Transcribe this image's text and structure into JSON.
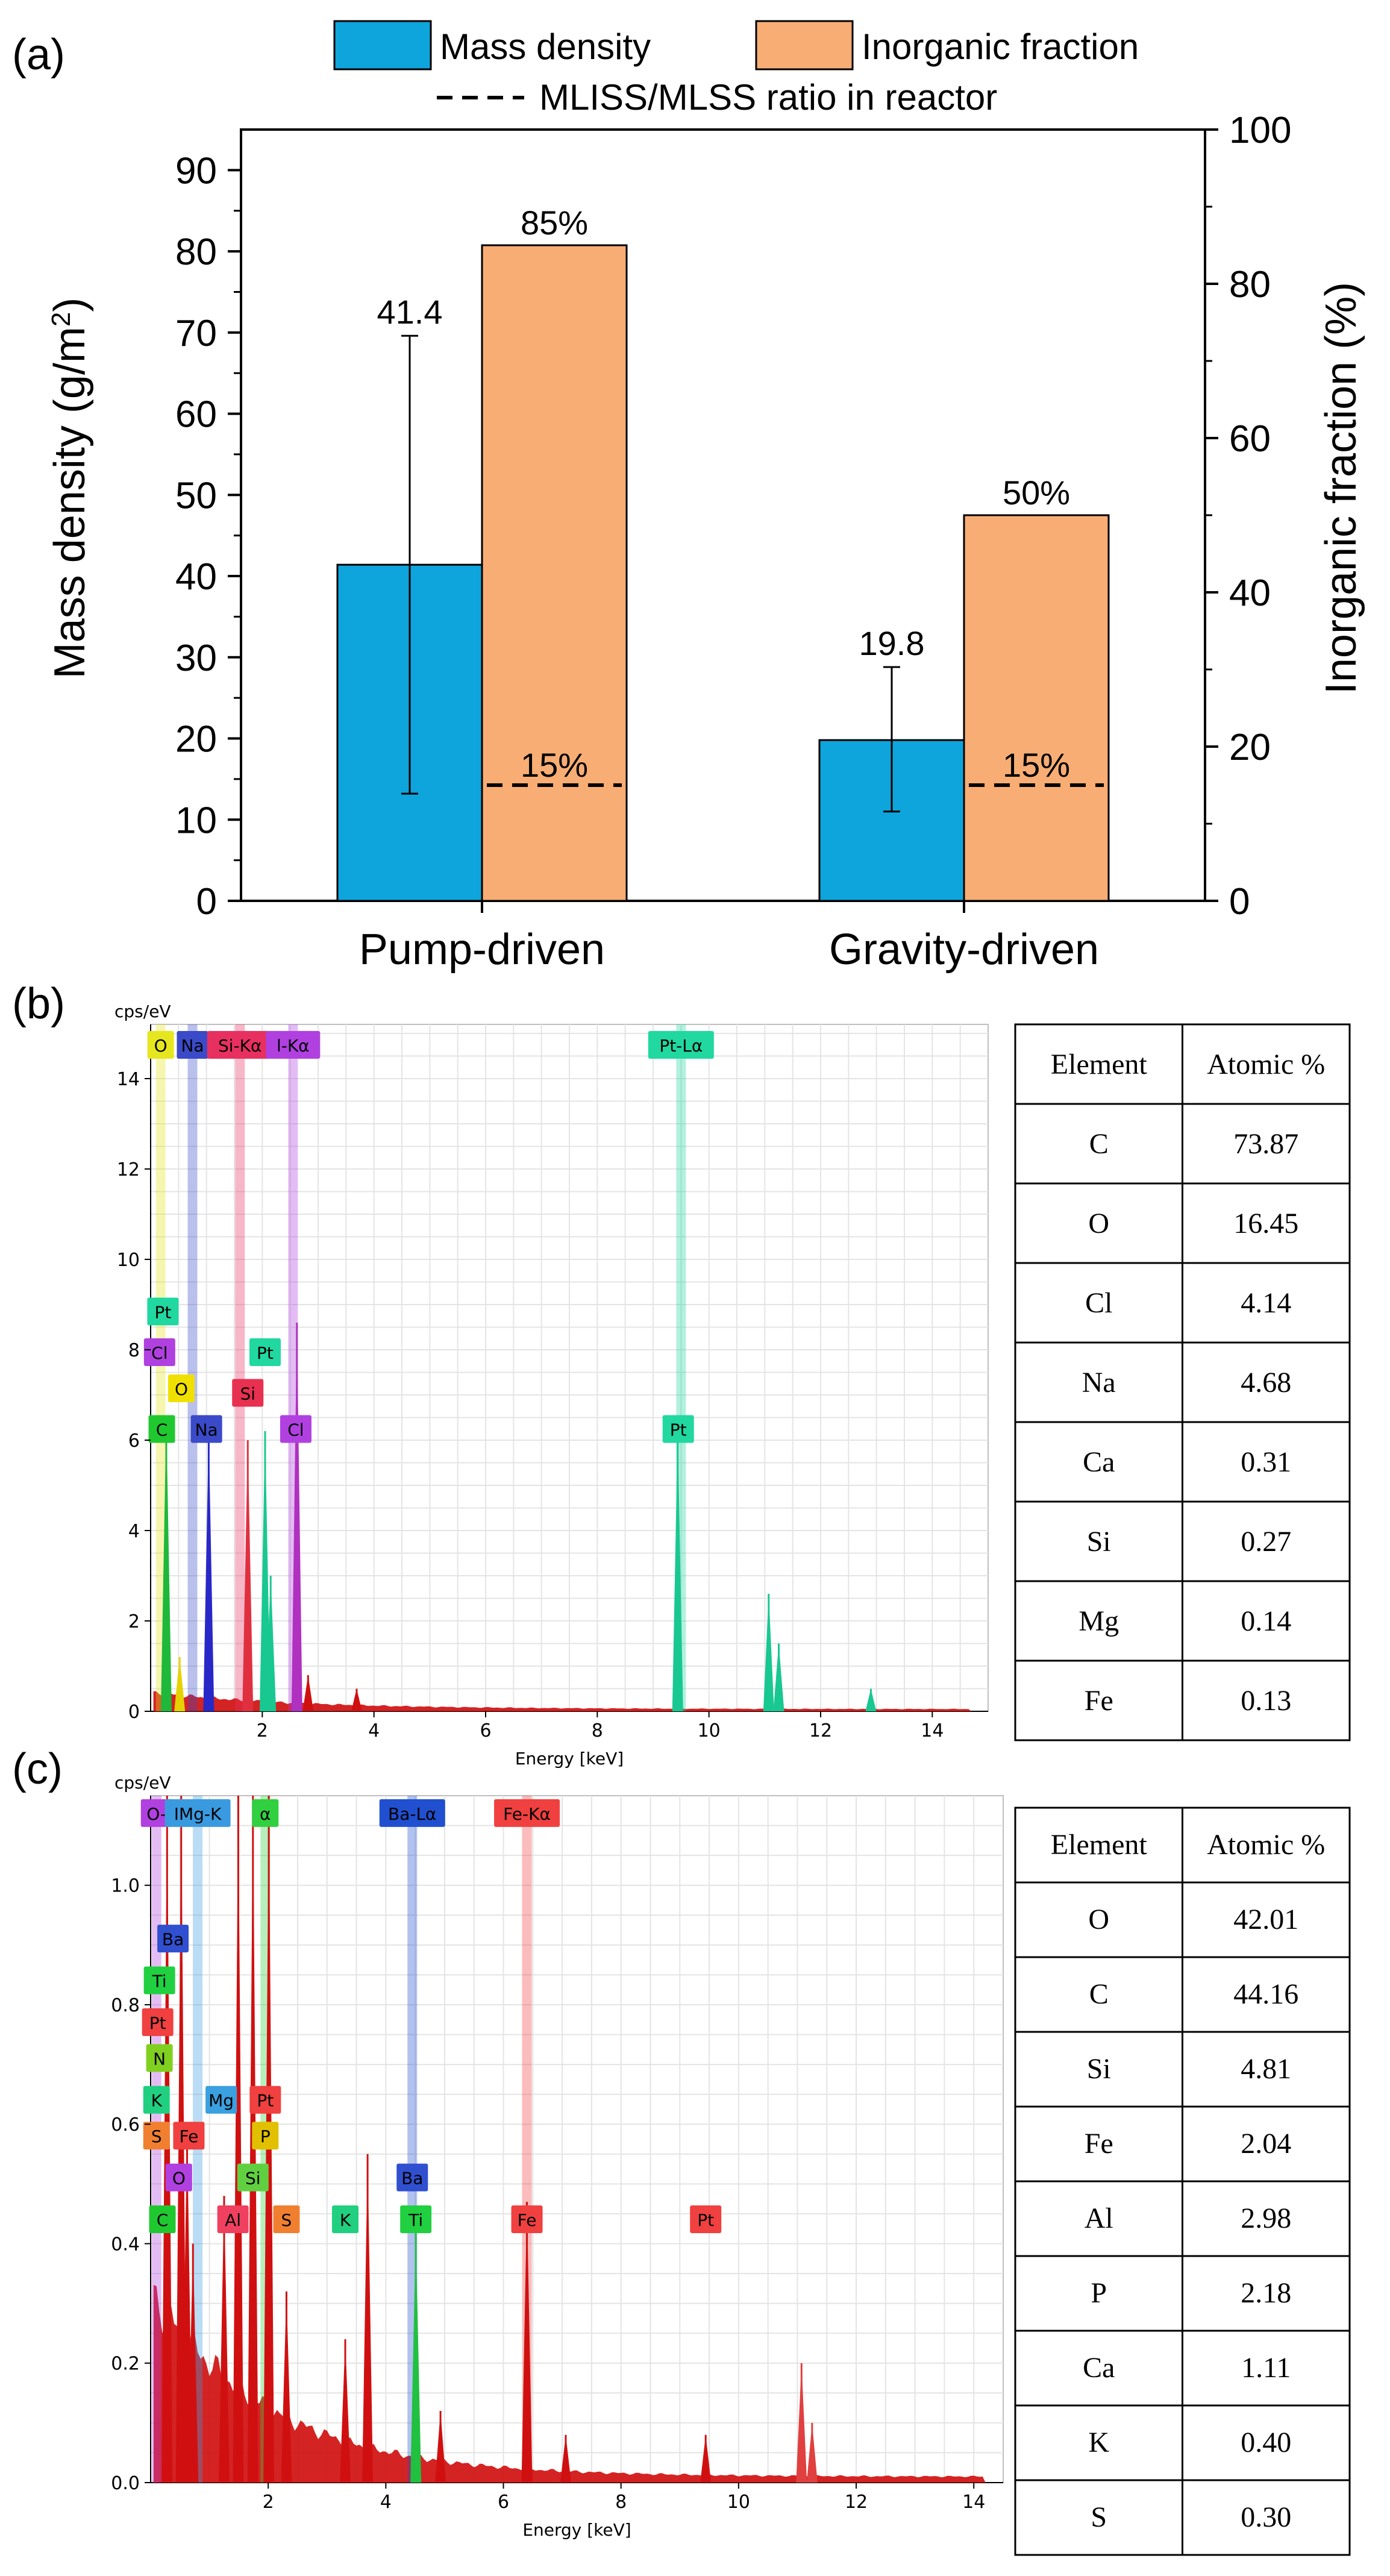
{
  "chart_data": [
    {
      "type": "bar",
      "panel": "(a)",
      "categories": [
        "Pump-driven",
        "Gravity-driven"
      ],
      "series": [
        {
          "name": "Mass density",
          "axis": "left",
          "color": "#0ea5dc",
          "values": [
            41.4,
            19.8
          ],
          "error_low": [
            13.2,
            11.0
          ],
          "error_high": [
            69.6,
            28.8
          ],
          "labels": [
            "41.4",
            "19.8"
          ]
        },
        {
          "name": "Inorganic fraction",
          "axis": "right",
          "color": "#f7ad73",
          "values": [
            85,
            50
          ],
          "labels": [
            "85%",
            "50%"
          ]
        }
      ],
      "reference_line": {
        "name": "MLISS/MLSS ratio in reactor",
        "axis": "right",
        "values": [
          15,
          15
        ],
        "labels": [
          "15%",
          "15%"
        ]
      },
      "ylabel": "Mass density (g/m",
      "ylabel_sup": "2",
      "ylabel_close": ")",
      "ylabel_right": "Inorganic fraction  (%)",
      "ylim": [
        0,
        95
      ],
      "ylim_right": [
        0,
        100
      ],
      "yticks": [
        "0",
        "10",
        "20",
        "30",
        "40",
        "50",
        "60",
        "70",
        "80",
        "90"
      ],
      "yticks_right": [
        "0",
        "20",
        "40",
        "60",
        "80",
        "100"
      ],
      "legend": [
        "Mass density",
        "Inorganic fraction",
        "MLISS/MLSS ratio in reactor"
      ],
      "legend_position": "top"
    },
    {
      "type": "line",
      "panel": "(b)",
      "ylabel": "cps/eV",
      "xlabel": "Energy [keV]",
      "xlim": [
        0,
        15
      ],
      "ylim": [
        0,
        15.2
      ],
      "xticks": [
        "2",
        "4",
        "6",
        "8",
        "10",
        "12",
        "14"
      ],
      "yticks": [
        "0",
        "2",
        "4",
        "6",
        "8",
        "10",
        "12",
        "14"
      ],
      "peaks": [
        {
          "energy": 0.28,
          "height": 6.5,
          "color": "#1fb83a"
        },
        {
          "energy": 0.52,
          "height": 1.2,
          "color": "#e6d200"
        },
        {
          "energy": 1.04,
          "height": 6.2,
          "color": "#2828c8"
        },
        {
          "energy": 1.74,
          "height": 6.0,
          "color": "#e03040"
        },
        {
          "energy": 2.05,
          "height": 6.2,
          "color": "#18c890"
        },
        {
          "energy": 2.15,
          "height": 3.0,
          "color": "#18c890"
        },
        {
          "energy": 2.62,
          "height": 8.6,
          "color": "#b030c0"
        },
        {
          "energy": 2.82,
          "height": 0.8,
          "color": "#d01010"
        },
        {
          "energy": 3.69,
          "height": 0.5,
          "color": "#d01010"
        },
        {
          "energy": 9.44,
          "height": 6.2,
          "color": "#18c890"
        },
        {
          "energy": 11.07,
          "height": 2.6,
          "color": "#18c890"
        },
        {
          "energy": 11.25,
          "height": 1.5,
          "color": "#18c890"
        },
        {
          "energy": 12.9,
          "height": 0.5,
          "color": "#18c890"
        }
      ],
      "element_tags": [
        {
          "text": "O",
          "energy": 0.18,
          "level": 15.0,
          "color": "#e6e620"
        },
        {
          "text": "Na",
          "energy": 0.75,
          "level": 15.0,
          "color": "#3a4ac8"
        },
        {
          "text": "Si-Kα",
          "energy": 1.6,
          "level": 15.0,
          "color": "#e83060"
        },
        {
          "text": "l-Kα",
          "energy": 2.55,
          "level": 15.0,
          "color": "#b040e0"
        },
        {
          "text": "Pt-Lα",
          "energy": 9.5,
          "level": 15.0,
          "color": "#20d8a0"
        },
        {
          "text": "Pt",
          "energy": 0.22,
          "level": 9.1,
          "color": "#20d8a0"
        },
        {
          "text": "Cl",
          "energy": 0.16,
          "level": 8.2,
          "color": "#b040e0"
        },
        {
          "text": "O",
          "energy": 0.55,
          "level": 7.4,
          "color": "#f0e000"
        },
        {
          "text": "Pt",
          "energy": 2.05,
          "level": 8.2,
          "color": "#20d8a0"
        },
        {
          "text": "Si",
          "energy": 1.74,
          "level": 7.3,
          "color": "#e83050"
        },
        {
          "text": "C",
          "energy": 0.2,
          "level": 6.5,
          "color": "#20c830"
        },
        {
          "text": "Na",
          "energy": 1.0,
          "level": 6.5,
          "color": "#3a4ac8"
        },
        {
          "text": "Cl",
          "energy": 2.6,
          "level": 6.5,
          "color": "#b040e0"
        },
        {
          "text": "Pt",
          "energy": 9.45,
          "level": 6.5,
          "color": "#20d8a0"
        }
      ],
      "table": {
        "headers": [
          "Element",
          "Atomic %"
        ],
        "rows": [
          [
            "C",
            "73.87"
          ],
          [
            "O",
            "16.45"
          ],
          [
            "Cl",
            "4.14"
          ],
          [
            "Na",
            "4.68"
          ],
          [
            "Ca",
            "0.31"
          ],
          [
            "Si",
            "0.27"
          ],
          [
            "Mg",
            "0.14"
          ],
          [
            "Fe",
            "0.13"
          ]
        ]
      }
    },
    {
      "type": "line",
      "panel": "(c)",
      "ylabel": "cps/eV",
      "xlabel": "Energy [keV]",
      "xlim": [
        0,
        14.5
      ],
      "ylim": [
        0,
        1.15
      ],
      "xticks": [
        "2",
        "4",
        "6",
        "8",
        "10",
        "12",
        "14"
      ],
      "yticks": [
        "0.0",
        "0.2",
        "0.4",
        "0.6",
        "0.8",
        "1.0"
      ],
      "peaks": [
        {
          "energy": 0.28,
          "height": 1.15,
          "color": "#d01010"
        },
        {
          "energy": 0.52,
          "height": 1.15,
          "color": "#d01010"
        },
        {
          "energy": 0.62,
          "height": 0.6,
          "color": "#d01010"
        },
        {
          "energy": 0.72,
          "height": 0.4,
          "color": "#d01010"
        },
        {
          "energy": 1.25,
          "height": 0.48,
          "color": "#d01010"
        },
        {
          "energy": 1.49,
          "height": 1.15,
          "color": "#d01010"
        },
        {
          "energy": 1.74,
          "height": 1.15,
          "color": "#d01010"
        },
        {
          "energy": 2.01,
          "height": 1.15,
          "color": "#d01010"
        },
        {
          "energy": 2.31,
          "height": 0.32,
          "color": "#d01010"
        },
        {
          "energy": 3.31,
          "height": 0.24,
          "color": "#d01010"
        },
        {
          "energy": 3.69,
          "height": 0.55,
          "color": "#d01010"
        },
        {
          "energy": 4.51,
          "height": 0.42,
          "color": "#20c040"
        },
        {
          "energy": 4.93,
          "height": 0.12,
          "color": "#d01010"
        },
        {
          "energy": 6.4,
          "height": 0.47,
          "color": "#d01010"
        },
        {
          "energy": 7.06,
          "height": 0.08,
          "color": "#d01010"
        },
        {
          "energy": 9.44,
          "height": 0.08,
          "color": "#d01010"
        },
        {
          "energy": 11.07,
          "height": 0.2,
          "color": "#e04040"
        },
        {
          "energy": 11.25,
          "height": 0.1,
          "color": "#e04040"
        }
      ],
      "element_tags": [
        {
          "text": "O-",
          "energy": 0.1,
          "level": 1.14,
          "color": "#b040e0"
        },
        {
          "text": "IMg-K",
          "energy": 0.8,
          "level": 1.14,
          "color": "#3a9ae0"
        },
        {
          "text": "α",
          "energy": 1.95,
          "level": 1.14,
          "color": "#30d040"
        },
        {
          "text": "Ba-Lα",
          "energy": 4.45,
          "level": 1.14,
          "color": "#2050d0"
        },
        {
          "text": "Fe-Kα",
          "energy": 6.4,
          "level": 1.14,
          "color": "#f04040"
        },
        {
          "text": "Ba",
          "energy": 0.38,
          "level": 0.93,
          "color": "#3050d0"
        },
        {
          "text": "Ti",
          "energy": 0.15,
          "level": 0.86,
          "color": "#20d040"
        },
        {
          "text": "Pt",
          "energy": 0.12,
          "level": 0.79,
          "color": "#f04040"
        },
        {
          "text": "N",
          "energy": 0.15,
          "level": 0.73,
          "color": "#80d020"
        },
        {
          "text": "K",
          "energy": 0.1,
          "level": 0.66,
          "color": "#20d080"
        },
        {
          "text": "Mg",
          "energy": 1.2,
          "level": 0.66,
          "color": "#3aa0e0"
        },
        {
          "text": "Pt",
          "energy": 1.95,
          "level": 0.66,
          "color": "#f04040"
        },
        {
          "text": "S",
          "energy": 0.1,
          "level": 0.6,
          "color": "#f08030"
        },
        {
          "text": "Fe",
          "energy": 0.65,
          "level": 0.6,
          "color": "#f04040"
        },
        {
          "text": "P",
          "energy": 1.95,
          "level": 0.6,
          "color": "#e0c000"
        },
        {
          "text": "O",
          "energy": 0.48,
          "level": 0.53,
          "color": "#b040e0"
        },
        {
          "text": "Si",
          "energy": 1.74,
          "level": 0.53,
          "color": "#60d040"
        },
        {
          "text": "Ba",
          "energy": 4.45,
          "level": 0.53,
          "color": "#3050d0"
        },
        {
          "text": "C",
          "energy": 0.2,
          "level": 0.46,
          "color": "#20c830"
        },
        {
          "text": "Al",
          "energy": 1.4,
          "level": 0.46,
          "color": "#f04060"
        },
        {
          "text": "S",
          "energy": 2.31,
          "level": 0.46,
          "color": "#f08030"
        },
        {
          "text": "K",
          "energy": 3.31,
          "level": 0.46,
          "color": "#20d080"
        },
        {
          "text": "Ti",
          "energy": 4.51,
          "level": 0.46,
          "color": "#20d040"
        },
        {
          "text": "Fe",
          "energy": 6.4,
          "level": 0.46,
          "color": "#f04040"
        },
        {
          "text": "Pt",
          "energy": 9.44,
          "level": 0.46,
          "color": "#f04040"
        }
      ],
      "table": {
        "headers": [
          "Element",
          "Atomic %"
        ],
        "rows": [
          [
            "O",
            "42.01"
          ],
          [
            "C",
            "44.16"
          ],
          [
            "Si",
            "4.81"
          ],
          [
            "Fe",
            "2.04"
          ],
          [
            "Al",
            "2.98"
          ],
          [
            "P",
            "2.18"
          ],
          [
            "Ca",
            "1.11"
          ],
          [
            "K",
            "0.40"
          ],
          [
            "S",
            "0.30"
          ]
        ]
      }
    }
  ]
}
